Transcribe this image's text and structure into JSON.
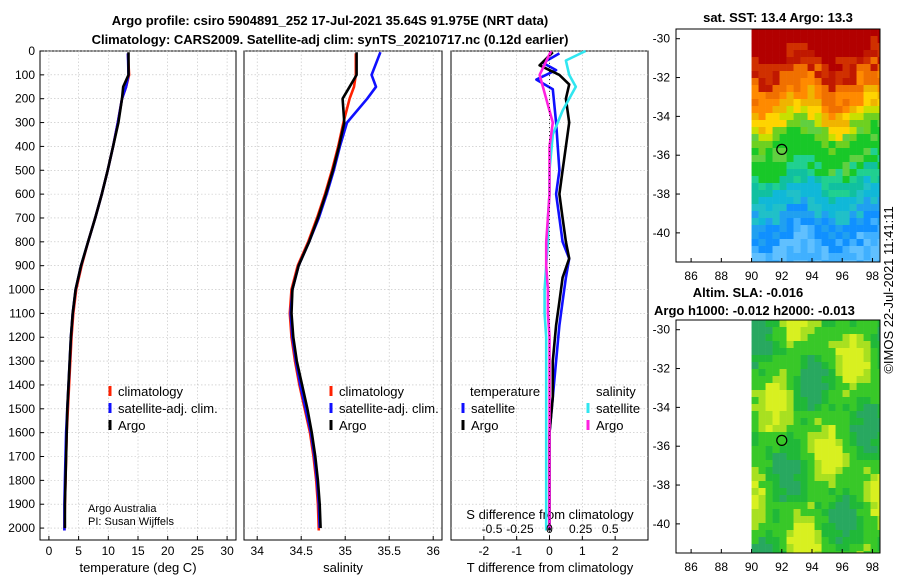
{
  "figure": {
    "title_line1": "Argo profile: csiro 5904891_252 17-Jul-2021 35.64S 91.975E (NRT data)",
    "title_line2": "Climatology: CARS2009. Satellite-adj clim: synTS_20210717.nc (0.12d earlier)",
    "credit_line1": "Argo Australia",
    "credit_line2": "PI: Susan Wijffels",
    "timestamp": "©IMOS 22-Jul-2021 11:41:11"
  },
  "colors": {
    "climatology": "#ff2000",
    "satellite": "#1010ff",
    "argo": "#000000",
    "sal_satellite": "#30e6f0",
    "sal_argo": "#ff20e0"
  },
  "chart_data": [
    {
      "id": "temperature",
      "type": "line",
      "xlabel": "temperature (deg C)",
      "ylabel": "",
      "xlim": [
        -1.5,
        31.5
      ],
      "ylim": [
        2050,
        0
      ],
      "xticks": [
        0,
        5,
        10,
        15,
        20,
        25,
        30
      ],
      "yticks": [
        0,
        100,
        200,
        300,
        400,
        500,
        600,
        700,
        800,
        900,
        1000,
        1100,
        1200,
        1300,
        1400,
        1500,
        1600,
        1700,
        1800,
        1900,
        2000
      ],
      "grid": true,
      "legend": [
        "climatology",
        "satellite-adj. clim.",
        "Argo"
      ],
      "series": [
        {
          "name": "climatology",
          "color_key": "climatology",
          "x": [
            13.3,
            13.5,
            13.0,
            12.3,
            11.6,
            10.8,
            9.9,
            8.9,
            7.8,
            6.6,
            5.5,
            4.6,
            4.1,
            3.8,
            3.6,
            3.4,
            3.2,
            3.0,
            2.9,
            2.8,
            2.7,
            2.6
          ],
          "y": [
            10,
            100,
            150,
            200,
            300,
            400,
            500,
            600,
            700,
            800,
            900,
            1000,
            1100,
            1200,
            1300,
            1400,
            1500,
            1600,
            1700,
            1800,
            1900,
            2010
          ]
        },
        {
          "name": "satellite-adj. clim.",
          "color_key": "satellite",
          "x": [
            13.3,
            13.4,
            13.0,
            12.3,
            11.6,
            10.8,
            9.9,
            8.9,
            7.8,
            6.6,
            5.4,
            4.5,
            4.0,
            3.7,
            3.5,
            3.3,
            3.1,
            2.9,
            2.8,
            2.7,
            2.6,
            2.6
          ],
          "y": [
            10,
            100,
            150,
            200,
            300,
            400,
            500,
            600,
            700,
            800,
            900,
            1000,
            1100,
            1200,
            1300,
            1400,
            1500,
            1600,
            1700,
            1800,
            1900,
            2010
          ]
        },
        {
          "name": "Argo",
          "color_key": "argo",
          "x": [
            13.4,
            13.4,
            12.5,
            12.3,
            11.7,
            10.8,
            9.9,
            8.9,
            7.8,
            6.6,
            5.4,
            4.5,
            4.0,
            3.7,
            3.5,
            3.3,
            3.1,
            3.0,
            2.9,
            2.8,
            2.7,
            2.7
          ],
          "y": [
            5,
            100,
            150,
            200,
            300,
            400,
            500,
            600,
            700,
            800,
            900,
            1000,
            1100,
            1200,
            1300,
            1400,
            1500,
            1600,
            1700,
            1800,
            1900,
            2000
          ]
        }
      ]
    },
    {
      "id": "salinity",
      "type": "line",
      "xlabel": "salinity",
      "xlim": [
        33.85,
        36.1
      ],
      "ylim": [
        2050,
        0
      ],
      "xticks": [
        34,
        34.5,
        35,
        35.5,
        36
      ],
      "grid": true,
      "legend": [
        "climatology",
        "satellite-adj. clim.",
        "Argo"
      ],
      "series": [
        {
          "name": "climatology",
          "color_key": "climatology",
          "x": [
            35.12,
            35.12,
            35.1,
            35.05,
            34.98,
            34.92,
            34.85,
            34.77,
            34.68,
            34.58,
            34.46,
            34.39,
            34.37,
            34.39,
            34.43,
            34.48,
            34.54,
            34.6,
            34.64,
            34.67,
            34.69,
            34.7
          ],
          "y": [
            10,
            100,
            150,
            200,
            300,
            400,
            500,
            600,
            700,
            800,
            900,
            1000,
            1100,
            1200,
            1300,
            1400,
            1500,
            1600,
            1700,
            1800,
            1900,
            2010
          ]
        },
        {
          "name": "satellite-adj. clim.",
          "color_key": "satellite",
          "x": [
            35.4,
            35.3,
            35.35,
            35.25,
            35.02,
            34.94,
            34.87,
            34.79,
            34.7,
            34.59,
            34.47,
            34.4,
            34.38,
            34.4,
            34.44,
            34.49,
            34.55,
            34.61,
            34.65,
            34.68,
            34.7,
            34.71
          ],
          "y": [
            5,
            100,
            150,
            200,
            300,
            400,
            500,
            600,
            700,
            800,
            900,
            1000,
            1100,
            1200,
            1300,
            1400,
            1500,
            1600,
            1700,
            1800,
            1900,
            2000
          ]
        },
        {
          "name": "Argo",
          "color_key": "argo",
          "x": [
            35.13,
            35.13,
            35.05,
            34.97,
            34.99,
            34.93,
            34.86,
            34.78,
            34.69,
            34.59,
            34.47,
            34.4,
            34.39,
            34.41,
            34.45,
            34.51,
            34.57,
            34.62,
            34.66,
            34.69,
            34.71,
            34.72
          ],
          "y": [
            5,
            100,
            150,
            200,
            300,
            400,
            500,
            600,
            700,
            800,
            900,
            1000,
            1100,
            1200,
            1300,
            1400,
            1500,
            1600,
            1700,
            1800,
            1900,
            2000
          ]
        }
      ]
    },
    {
      "id": "difference",
      "type": "line",
      "xlabel": "T difference from climatology",
      "top_label": "S difference from climatology",
      "xlim": [
        -3,
        3
      ],
      "ylim": [
        2050,
        0
      ],
      "xticks": [
        -2,
        -1,
        0,
        1,
        2
      ],
      "top_ticks": [
        "-0.5",
        "-0.25",
        "0",
        "0.25",
        "0.5"
      ],
      "top_tick_values": [
        -1.75,
        -0.9,
        0,
        0.95,
        1.85
      ],
      "grid": true,
      "legend_t_title": "temperature",
      "legend_s_title": "salinity",
      "legend": [
        "satellite",
        "Argo",
        "satellite",
        "Argo"
      ],
      "series": [
        {
          "name": "T satellite",
          "color_key": "satellite",
          "x": [
            0.3,
            -0.2,
            0.2,
            -0.4,
            0.1,
            0.2,
            0.3,
            0.2,
            0.3,
            0.4,
            0.6,
            0.5,
            0.4,
            0.3,
            0.2,
            0.1,
            0.0,
            0.0,
            0.0,
            0.0,
            0.0,
            0.0
          ],
          "y": [
            10,
            50,
            80,
            120,
            160,
            300,
            500,
            600,
            700,
            800,
            870,
            950,
            1050,
            1150,
            1300,
            1450,
            1600,
            1750,
            1850,
            1950,
            2000,
            2010
          ]
        },
        {
          "name": "T Argo",
          "color_key": "argo",
          "x": [
            0.1,
            -0.3,
            0.3,
            0.6,
            0.5,
            0.6,
            0.4,
            0.3,
            0.4,
            0.5,
            0.6,
            0.4,
            0.3,
            0.2,
            0.1,
            0.1,
            0.0,
            0.0,
            0.0,
            0.0,
            0.0,
            0.0
          ],
          "y": [
            5,
            60,
            100,
            140,
            200,
            300,
            500,
            600,
            700,
            800,
            870,
            950,
            1050,
            1150,
            1300,
            1450,
            1600,
            1750,
            1850,
            1950,
            2000,
            2010
          ]
        },
        {
          "name": "S satellite",
          "color_key": "sal_satellite",
          "x": [
            1.1,
            0.5,
            0.6,
            0.8,
            0.4,
            0.1,
            0.0,
            0.0,
            -0.05,
            -0.05,
            -0.1,
            -0.15,
            -0.15,
            -0.1,
            -0.1,
            -0.1,
            -0.1,
            -0.1,
            -0.1,
            -0.1,
            -0.1,
            -0.1
          ],
          "y": [
            0,
            40,
            100,
            150,
            250,
            350,
            500,
            600,
            700,
            800,
            900,
            1000,
            1100,
            1200,
            1300,
            1400,
            1500,
            1600,
            1700,
            1800,
            1900,
            2010
          ]
        },
        {
          "name": "S Argo",
          "color_key": "sal_argo",
          "x": [
            0.05,
            -0.3,
            -0.2,
            -0.1,
            0.1,
            0.0,
            0.0,
            0.0,
            -0.05,
            -0.1,
            -0.1,
            -0.05,
            -0.05,
            0.0,
            0.0,
            0.0,
            0.0,
            0.0,
            0.0,
            0.0,
            0.0,
            0.0
          ],
          "y": [
            0,
            100,
            150,
            200,
            300,
            400,
            500,
            600,
            700,
            800,
            900,
            1000,
            1100,
            1200,
            1300,
            1400,
            1500,
            1600,
            1700,
            1800,
            1900,
            2000
          ]
        }
      ]
    },
    {
      "id": "sst_map",
      "type": "heatmap",
      "title": "sat. SST: 13.4  Argo: 13.3",
      "xlim": [
        85,
        98.5
      ],
      "ylim": [
        -41.5,
        -29.5
      ],
      "xticks": [
        86,
        88,
        90,
        92,
        94,
        96,
        98
      ],
      "yticks": [
        -30,
        -32,
        -34,
        -36,
        -38,
        -40
      ],
      "data_lon_range": [
        90,
        98.5
      ],
      "float_marker": {
        "lon": 92,
        "lat": -35.7
      },
      "bands": [
        "dark red near -30",
        "orange -31 to -33",
        "yellow -33.5",
        "green -34 to -37",
        "teal/cyan -37 to -40",
        "light blue -40 to -41.5"
      ]
    },
    {
      "id": "sla_map",
      "type": "heatmap",
      "title": "Altim. SLA: -0.016",
      "subtitle": "Argo h1000: -0.012  h2000: -0.013",
      "xlim": [
        85,
        98.5
      ],
      "ylim": [
        -41.5,
        -29.5
      ],
      "xticks": [
        86,
        88,
        90,
        92,
        94,
        96,
        98
      ],
      "yticks": [
        -30,
        -32,
        -34,
        -36,
        -38,
        -40
      ],
      "data_lon_range": [
        90,
        98.5
      ],
      "float_marker": {
        "lon": 92,
        "lat": -35.7
      },
      "bands": [
        "mostly green with yellow-green patches"
      ]
    }
  ]
}
